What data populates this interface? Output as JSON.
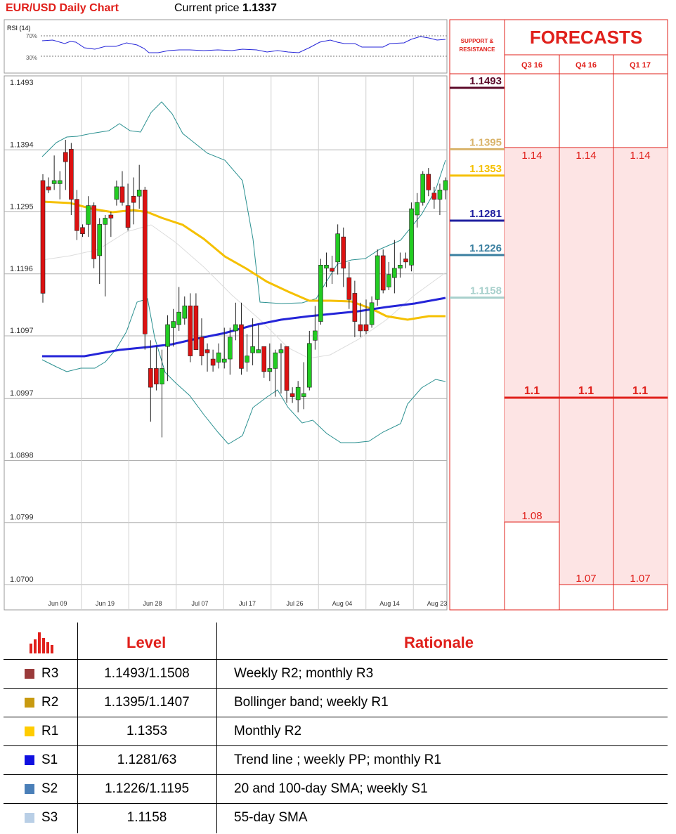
{
  "header": {
    "title": "EUR/USD Daily Chart",
    "price_label": "Current price",
    "price_value": "1.1337"
  },
  "rsi": {
    "label": "RSI (14)",
    "upper_label": "70%",
    "lower_label": "30%"
  },
  "sr_panel": {
    "title_line1": "SUPPORT &",
    "title_line2": "RESISTANCE"
  },
  "forecasts": {
    "title": "FORECASTS",
    "columns": [
      "Q3 16",
      "Q4 16",
      "Q1 17"
    ],
    "high": [
      "1.14",
      "1.14",
      "1.14"
    ],
    "mid": [
      "1.1",
      "1.1",
      "1.1"
    ],
    "low": [
      "1.08",
      "1.07",
      "1.07"
    ]
  },
  "colors": {
    "accent": "#e0201b",
    "sma_yellow": "#f5c000",
    "trend_blue": "#2525d8",
    "bollinger": "#2a9090",
    "bull": "#22cc22",
    "bear": "#dd1111",
    "forecast_fill": "#fde4e4"
  },
  "chart_data": {
    "type": "candlestick",
    "ylim": [
      1.07,
      1.1493
    ],
    "y_ticks": [
      "1.1493",
      "1.1394",
      "1.1295",
      "1.1196",
      "1.1097",
      "1.0997",
      "1.0898",
      "1.0799",
      "1.0700"
    ],
    "x_ticks": [
      "Jun 09",
      "Jun 19",
      "Jun 28",
      "Jul 07",
      "Jul 17",
      "Jul 26",
      "Aug 04",
      "Aug 14",
      "Aug 23"
    ],
    "levels": [
      {
        "label": "1.1493",
        "value": 1.1493,
        "color": "#5c0a2a"
      },
      {
        "label": "1.1395",
        "value": 1.1395,
        "color": "#d9b36a"
      },
      {
        "label": "1.1353",
        "value": 1.1353,
        "color": "#f5c000"
      },
      {
        "label": "1.1281",
        "value": 1.1281,
        "color": "#2020a0"
      },
      {
        "label": "1.1226",
        "value": 1.1226,
        "color": "#3a7fa0"
      },
      {
        "label": "1.1158",
        "value": 1.1158,
        "color": "#a8d0cc"
      }
    ],
    "candles": [
      [
        1.1345,
        1.1355,
        1.115,
        1.1165
      ],
      [
        1.1335,
        1.135,
        1.1325,
        1.133
      ],
      [
        1.134,
        1.1385,
        1.133,
        1.1345
      ],
      [
        1.134,
        1.136,
        1.1315,
        1.1345
      ],
      [
        1.139,
        1.141,
        1.133,
        1.1375
      ],
      [
        1.1395,
        1.1405,
        1.129,
        1.1315
      ],
      [
        1.1315,
        1.133,
        1.125,
        1.1265
      ],
      [
        1.127,
        1.1275,
        1.1255,
        1.126
      ],
      [
        1.1275,
        1.132,
        1.1255,
        1.1305
      ],
      [
        1.1305,
        1.131,
        1.1205,
        1.122
      ],
      [
        1.1225,
        1.1285,
        1.118,
        1.1275
      ],
      [
        1.1275,
        1.129,
        1.116,
        1.1285
      ],
      [
        1.129,
        1.1295,
        1.1255,
        1.1285
      ],
      [
        1.1315,
        1.1345,
        1.1305,
        1.1335
      ],
      [
        1.1335,
        1.136,
        1.1305,
        1.131
      ],
      [
        1.1305,
        1.134,
        1.1265,
        1.127
      ],
      [
        1.132,
        1.135,
        1.1275,
        1.131
      ],
      [
        1.132,
        1.137,
        1.13,
        1.133
      ],
      [
        1.133,
        1.1335,
        1.1075,
        1.11
      ],
      [
        1.1045,
        1.109,
        1.096,
        1.1015
      ],
      [
        1.1045,
        1.108,
        1.101,
        1.102
      ],
      [
        1.102,
        1.1075,
        1.0935,
        1.1045
      ],
      [
        1.108,
        1.113,
        1.1025,
        1.1115
      ],
      [
        1.111,
        1.114,
        1.108,
        1.112
      ],
      [
        1.1115,
        1.1175,
        1.1105,
        1.1135
      ],
      [
        1.1125,
        1.116,
        1.1115,
        1.1145
      ],
      [
        1.1145,
        1.1165,
        1.1055,
        1.1065
      ],
      [
        1.1145,
        1.1165,
        1.1075,
        1.1075
      ],
      [
        1.1095,
        1.1125,
        1.105,
        1.1065
      ],
      [
        1.1075,
        1.1085,
        1.104,
        1.107
      ],
      [
        1.106,
        1.1075,
        1.104,
        1.105
      ],
      [
        1.1055,
        1.1085,
        1.1045,
        1.107
      ],
      [
        1.1055,
        1.111,
        1.1045,
        1.106
      ],
      [
        1.106,
        1.111,
        1.1035,
        1.1095
      ],
      [
        1.1105,
        1.115,
        1.109,
        1.1115
      ],
      [
        1.1115,
        1.115,
        1.1035,
        1.1045
      ],
      [
        1.1055,
        1.11,
        1.104,
        1.1065
      ],
      [
        1.107,
        1.1125,
        1.105,
        1.108
      ],
      [
        1.107,
        1.1115,
        1.107,
        1.1075
      ],
      [
        1.108,
        1.108,
        1.103,
        1.104
      ],
      [
        1.104,
        1.1085,
        1.1025,
        1.1045
      ],
      [
        1.1045,
        1.1075,
        1.1,
        1.107
      ],
      [
        1.107,
        1.1085,
        1.1005,
        1.1075
      ],
      [
        1.108,
        1.108,
        1.099,
        1.101
      ],
      [
        1.1005,
        1.1015,
        1.099,
        1.1
      ],
      [
        1.0995,
        1.1025,
        1.0975,
        1.1015
      ],
      [
        1.1,
        1.1055,
        1.098,
        1.1005
      ],
      [
        1.1015,
        1.1105,
        1.101,
        1.1085
      ],
      [
        1.109,
        1.1145,
        1.1075,
        1.1105
      ],
      [
        1.112,
        1.122,
        1.1115,
        1.121
      ],
      [
        1.1205,
        1.123,
        1.1175,
        1.121
      ],
      [
        1.1205,
        1.1225,
        1.118,
        1.12
      ],
      [
        1.1215,
        1.1275,
        1.1195,
        1.126
      ],
      [
        1.1255,
        1.127,
        1.1175,
        1.1205
      ],
      [
        1.119,
        1.1215,
        1.114,
        1.1155
      ],
      [
        1.1165,
        1.1185,
        1.1095,
        1.112
      ],
      [
        1.1115,
        1.115,
        1.1095,
        1.1105
      ],
      [
        1.1115,
        1.1155,
        1.11,
        1.1105
      ],
      [
        1.1115,
        1.116,
        1.111,
        1.115
      ],
      [
        1.1155,
        1.1235,
        1.1145,
        1.1225
      ],
      [
        1.1225,
        1.1235,
        1.1165,
        1.117
      ],
      [
        1.1175,
        1.1215,
        1.117,
        1.1195
      ],
      [
        1.119,
        1.125,
        1.1165,
        1.1205
      ],
      [
        1.1205,
        1.123,
        1.119,
        1.121
      ],
      [
        1.122,
        1.123,
        1.1205,
        1.1215
      ],
      [
        1.121,
        1.131,
        1.12,
        1.13
      ],
      [
        1.129,
        1.1325,
        1.127,
        1.131
      ],
      [
        1.131,
        1.136,
        1.1305,
        1.1355
      ],
      [
        1.1355,
        1.1365,
        1.132,
        1.133
      ],
      [
        1.1325,
        1.1335,
        1.13,
        1.1315
      ],
      [
        1.1315,
        1.134,
        1.129,
        1.133
      ],
      [
        1.133,
        1.135,
        1.1315,
        1.1345
      ]
    ]
  },
  "sr_table": {
    "headers": {
      "level": "Level",
      "rationale": "Rationale"
    },
    "rows": [
      {
        "code": "R3",
        "level": "1.1493/1.1508",
        "rationale": "Weekly R2; monthly R3",
        "color": "#9a3a3a"
      },
      {
        "code": "R2",
        "level": "1.1395/1.1407",
        "rationale": "Bollinger band; weekly R1",
        "color": "#c89a10"
      },
      {
        "code": "R1",
        "level": "1.1353",
        "rationale": "Monthly R2",
        "color": "#ffcc00"
      },
      {
        "code": "S1",
        "level": "1.1281/63",
        "rationale": "Trend line ; weekly PP; monthly R1",
        "color": "#1010e0"
      },
      {
        "code": "S2",
        "level": "1.1226/1.1195",
        "rationale": "20 and 100-day SMA; weekly S1",
        "color": "#4a7fb8"
      },
      {
        "code": "S3",
        "level": "1.1158",
        "rationale": "55-day SMA",
        "color": "#b9cfe6"
      }
    ]
  }
}
